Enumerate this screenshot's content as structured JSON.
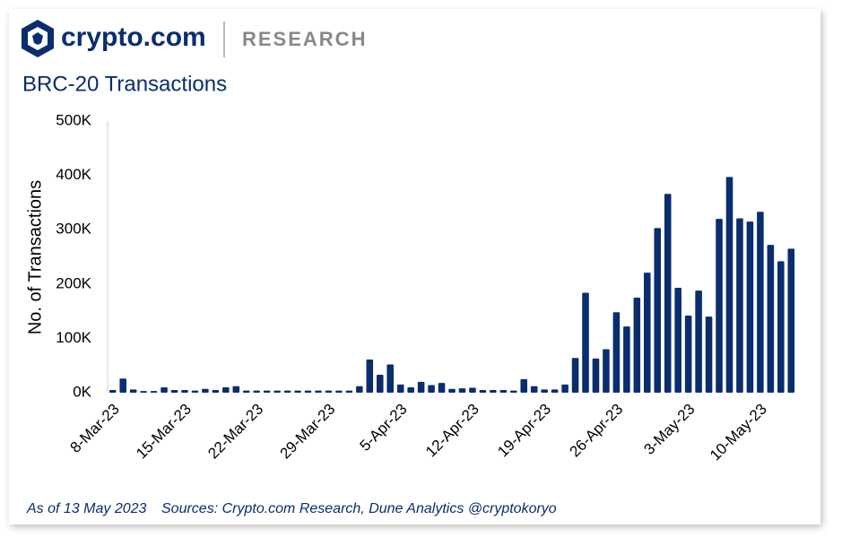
{
  "header": {
    "brand": "crypto.com",
    "section": "RESEARCH"
  },
  "chart_data": {
    "type": "bar",
    "title": "BRC-20 Transactions",
    "ylabel": "No. of Transactions",
    "note": "As of 13 May 2023",
    "source": "Sources: Crypto.com Research, Dune Analytics @cryptokoryo",
    "color": "#0a2d6e",
    "grid": false,
    "ylim": [
      0,
      500000
    ],
    "yticks": [
      {
        "value": 0,
        "label": "0K"
      },
      {
        "value": 100000,
        "label": "100K"
      },
      {
        "value": 200000,
        "label": "200K"
      },
      {
        "value": 300000,
        "label": "300K"
      },
      {
        "value": 400000,
        "label": "400K"
      },
      {
        "value": 500000,
        "label": "500K"
      }
    ],
    "categories": [
      "8-Mar-23",
      null,
      null,
      null,
      null,
      null,
      null,
      "15-Mar-23",
      null,
      null,
      null,
      null,
      null,
      null,
      "22-Mar-23",
      null,
      null,
      null,
      null,
      null,
      null,
      "29-Mar-23",
      null,
      null,
      null,
      null,
      null,
      null,
      "5-Apr-23",
      null,
      null,
      null,
      null,
      null,
      null,
      "12-Apr-23",
      null,
      null,
      null,
      null,
      null,
      null,
      "19-Apr-23",
      null,
      null,
      null,
      null,
      null,
      null,
      "26-Apr-23",
      null,
      null,
      null,
      null,
      null,
      null,
      "3-May-23",
      null,
      null,
      null,
      null,
      null,
      null,
      "10-May-23",
      null,
      null,
      null
    ],
    "values": [
      5000,
      26000,
      6000,
      3000,
      3000,
      10000,
      5000,
      5000,
      4000,
      7000,
      5000,
      10000,
      12000,
      4000,
      4000,
      4000,
      4000,
      4000,
      4000,
      4000,
      4000,
      4000,
      4000,
      4000,
      12000,
      61000,
      33000,
      52000,
      15000,
      10000,
      20000,
      14000,
      18000,
      7000,
      8000,
      9000,
      5000,
      5000,
      5000,
      4000,
      25000,
      12000,
      6000,
      6000,
      15000,
      64000,
      184000,
      63000,
      80000,
      148000,
      122000,
      175000,
      221000,
      303000,
      366000,
      193000,
      142000,
      188000,
      140000,
      320000,
      397000,
      321000,
      315000,
      333000,
      272000,
      242000,
      265000
    ]
  }
}
